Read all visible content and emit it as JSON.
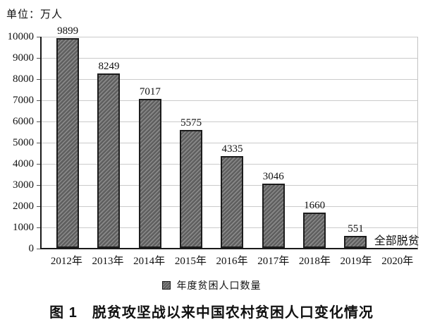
{
  "labels": {
    "unit": "单位：万人",
    "legend": "年度贫困人口数量",
    "no_poverty": "全部脱贫",
    "caption": "图 1　脱贫攻坚战以来中国农村贫困人口变化情况"
  },
  "colors": {
    "bar_fill_dark": "#5f5f5f",
    "bar_fill_light": "#8a8a8a",
    "bar_border": "#1c1c1c",
    "axis": "#1a1a1a",
    "gridline": "#cbcbcb",
    "text": "#111111",
    "background": "#ffffff"
  },
  "chart_data": {
    "type": "bar",
    "title": "图 1 脱贫攻坚战以来中国农村贫困人口变化情况",
    "unit_label": "单位：万人",
    "categories": [
      "2012年",
      "2013年",
      "2014年",
      "2015年",
      "2016年",
      "2017年",
      "2018年",
      "2019年",
      "2020年"
    ],
    "values": [
      9899,
      8249,
      7017,
      5575,
      4335,
      3046,
      1660,
      551,
      0
    ],
    "bar_labels": [
      "9899",
      "8249",
      "7017",
      "5575",
      "4335",
      "3046",
      "1660",
      "551"
    ],
    "yticks": [
      "10000",
      "9000",
      "8000",
      "7000",
      "6000",
      "5000",
      "4000",
      "3000",
      "2000",
      "1000",
      "0"
    ],
    "ylim": [
      0,
      10000
    ],
    "ytick_interval": 1000,
    "grid": "horizontal",
    "bar_style": "diagonal-hatch",
    "legend": [
      "年度贫困人口数量"
    ],
    "legend_position": "bottom",
    "annotations": [
      {
        "category": "2020年",
        "text": "全部脱贫"
      }
    ]
  }
}
